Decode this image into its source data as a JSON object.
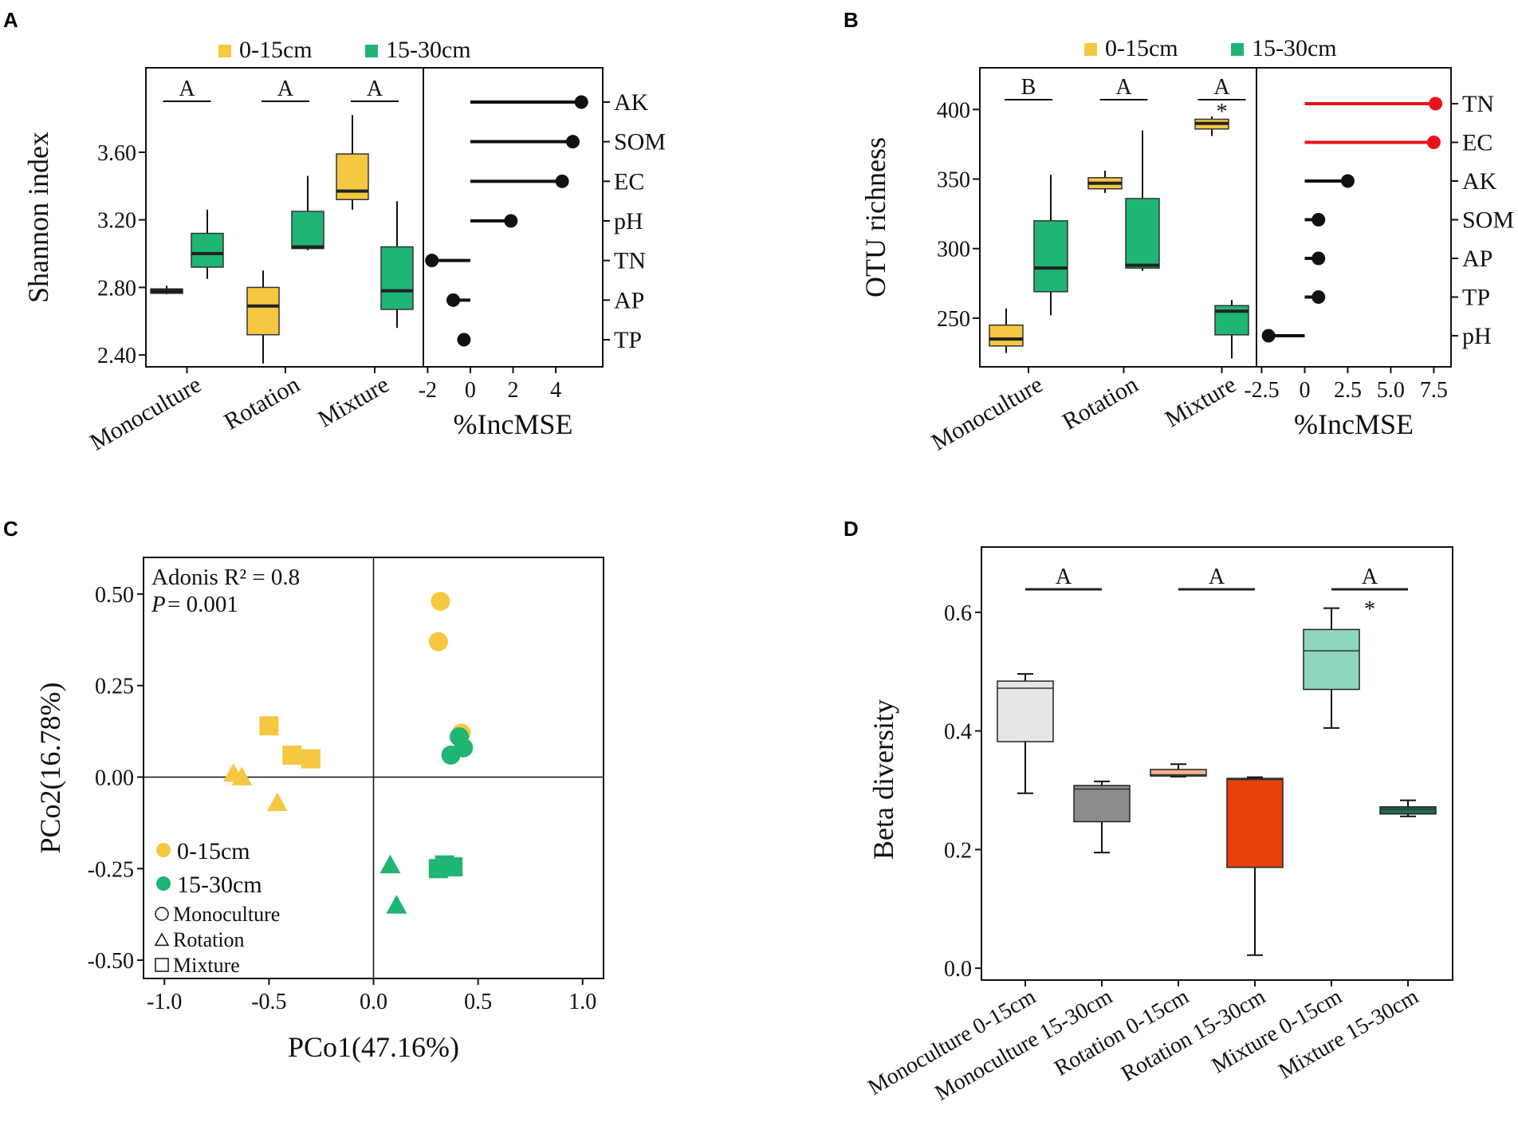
{
  "colors": {
    "yellow": "#F5C842",
    "green": "#1FB574",
    "red": "#E8131A",
    "black": "#111111",
    "d_mono_0_15": "#E6E6E6",
    "d_mono_15_30": "#8C8C8C",
    "d_rot_0_15": "#F5B08F",
    "d_rot_15_30": "#E8420A",
    "d_mix_0_15": "#8FD6BC",
    "d_mix_15_30": "#1F6B4E"
  },
  "chart_data": [
    {
      "panel": "A",
      "type": "box",
      "ylabel": "Shannon index",
      "legend": [
        "0-15cm",
        "15-30cm"
      ],
      "categories": [
        "Monoculture",
        "Rotation",
        "Mixture"
      ],
      "yticks": [
        "2.40",
        "2.80",
        "3.20",
        "3.60"
      ],
      "ylim": [
        2.33,
        4.1
      ],
      "letters": [
        "A",
        "A",
        "A"
      ],
      "star": [
        false,
        false,
        false
      ],
      "boxes": [
        {
          "group": "Monoculture",
          "depth": "0-15cm",
          "color": "black",
          "min": 2.76,
          "q1": 2.765,
          "median": 2.785,
          "q3": 2.79,
          "max": 2.81
        },
        {
          "group": "Monoculture",
          "depth": "15-30cm",
          "color": "green",
          "min": 2.85,
          "q1": 2.92,
          "median": 3.0,
          "q3": 3.12,
          "max": 3.26
        },
        {
          "group": "Rotation",
          "depth": "0-15cm",
          "color": "yellow",
          "min": 2.35,
          "q1": 2.52,
          "median": 2.69,
          "q3": 2.8,
          "max": 2.9
        },
        {
          "group": "Rotation",
          "depth": "15-30cm",
          "color": "green",
          "min": 3.02,
          "q1": 3.03,
          "median": 3.04,
          "q3": 3.25,
          "max": 3.46
        },
        {
          "group": "Mixture",
          "depth": "0-15cm",
          "color": "yellow",
          "min": 3.26,
          "q1": 3.32,
          "median": 3.37,
          "q3": 3.59,
          "max": 3.82
        },
        {
          "group": "Mixture",
          "depth": "15-30cm",
          "color": "green",
          "min": 2.56,
          "q1": 2.67,
          "median": 2.78,
          "q3": 3.04,
          "max": 3.31
        }
      ],
      "importance": {
        "xlabel": "%IncMSE",
        "xticks": [
          "-2",
          "0",
          "2",
          "4"
        ],
        "xlim": [
          -2.2,
          6.2
        ],
        "variables": [
          "AK",
          "SOM",
          "EC",
          "pH",
          "TN",
          "AP",
          "TP"
        ],
        "values": [
          5.2,
          4.8,
          4.3,
          1.9,
          -1.8,
          -0.8,
          -0.3
        ],
        "colors": [
          "black",
          "black",
          "black",
          "black",
          "black",
          "black",
          "black"
        ]
      }
    },
    {
      "panel": "B",
      "type": "box",
      "ylabel": "OTU richness",
      "legend": [
        "0-15cm",
        "15-30cm"
      ],
      "categories": [
        "Monoculture",
        "Rotation",
        "Mixture"
      ],
      "yticks": [
        "250",
        "300",
        "350",
        "400"
      ],
      "ylim": [
        215,
        430
      ],
      "letters": [
        "B",
        "A",
        "A"
      ],
      "star": [
        false,
        false,
        true
      ],
      "boxes": [
        {
          "group": "Monoculture",
          "depth": "0-15cm",
          "color": "yellow",
          "min": 225,
          "q1": 230,
          "median": 235,
          "q3": 245,
          "max": 257
        },
        {
          "group": "Monoculture",
          "depth": "15-30cm",
          "color": "green",
          "min": 252,
          "q1": 269,
          "median": 286,
          "q3": 320,
          "max": 353
        },
        {
          "group": "Rotation",
          "depth": "0-15cm",
          "color": "yellow",
          "min": 340,
          "q1": 343,
          "median": 347,
          "q3": 351,
          "max": 356
        },
        {
          "group": "Rotation",
          "depth": "15-30cm",
          "color": "green",
          "min": 284,
          "q1": 286,
          "median": 288,
          "q3": 336,
          "max": 385
        },
        {
          "group": "Mixture",
          "depth": "0-15cm",
          "color": "yellow",
          "min": 381,
          "q1": 386,
          "median": 390,
          "q3": 393,
          "max": 395
        },
        {
          "group": "Mixture",
          "depth": "15-30cm",
          "color": "green",
          "min": 221,
          "q1": 238,
          "median": 255,
          "q3": 259,
          "max": 263
        }
      ],
      "importance": {
        "xlabel": "%IncMSE",
        "xticks": [
          "-2.5",
          "0",
          "2.5",
          "5.0",
          "7.5"
        ],
        "xlim": [
          -2.8,
          8.5
        ],
        "variables": [
          "TN",
          "EC",
          "AK",
          "SOM",
          "AP",
          "TP",
          "pH"
        ],
        "values": [
          7.6,
          7.5,
          2.5,
          0.8,
          0.8,
          0.8,
          -2.1
        ],
        "colors": [
          "red",
          "red",
          "black",
          "black",
          "black",
          "black",
          "black"
        ]
      }
    },
    {
      "panel": "C",
      "type": "scatter",
      "xlabel": "PCo1(47.16%)",
      "ylabel": "PCo2(16.78%)",
      "xticks": [
        "-1.0",
        "-0.5",
        "0.0",
        "0.5",
        "1.0"
      ],
      "yticks": [
        "-0.50",
        "-0.25",
        "0.00",
        "0.25",
        "0.50"
      ],
      "xlim": [
        -1.1,
        1.1
      ],
      "ylim": [
        -0.55,
        0.6
      ],
      "annotation_r2": "Adonis R² = 0.8",
      "annotation_p_label": "P",
      "annotation_p_value": " = 0.001",
      "legend_colors": [
        {
          "label": "0-15cm",
          "color": "yellow"
        },
        {
          "label": "15-30cm",
          "color": "green"
        }
      ],
      "legend_shapes": [
        {
          "label": "Monoculture",
          "shape": "circle"
        },
        {
          "label": "Rotation",
          "shape": "triangle"
        },
        {
          "label": "Mixture",
          "shape": "square"
        }
      ],
      "points": [
        {
          "x": 0.32,
          "y": 0.48,
          "shape": "circle",
          "color": "yellow"
        },
        {
          "x": 0.31,
          "y": 0.37,
          "shape": "circle",
          "color": "yellow"
        },
        {
          "x": 0.42,
          "y": 0.12,
          "shape": "circle",
          "color": "yellow"
        },
        {
          "x": 0.41,
          "y": 0.11,
          "shape": "circle",
          "color": "green"
        },
        {
          "x": 0.43,
          "y": 0.08,
          "shape": "circle",
          "color": "green"
        },
        {
          "x": 0.37,
          "y": 0.06,
          "shape": "circle",
          "color": "green"
        },
        {
          "x": -0.5,
          "y": 0.14,
          "shape": "square",
          "color": "yellow"
        },
        {
          "x": -0.39,
          "y": 0.06,
          "shape": "square",
          "color": "yellow"
        },
        {
          "x": -0.3,
          "y": 0.05,
          "shape": "square",
          "color": "yellow"
        },
        {
          "x": -0.67,
          "y": 0.01,
          "shape": "triangle",
          "color": "yellow"
        },
        {
          "x": -0.63,
          "y": 0.0,
          "shape": "triangle",
          "color": "yellow"
        },
        {
          "x": -0.46,
          "y": -0.07,
          "shape": "triangle",
          "color": "yellow"
        },
        {
          "x": 0.31,
          "y": -0.25,
          "shape": "square",
          "color": "green"
        },
        {
          "x": 0.34,
          "y": -0.24,
          "shape": "square",
          "color": "green"
        },
        {
          "x": 0.38,
          "y": -0.245,
          "shape": "square",
          "color": "green"
        },
        {
          "x": 0.08,
          "y": -0.24,
          "shape": "triangle",
          "color": "green"
        },
        {
          "x": 0.11,
          "y": -0.35,
          "shape": "triangle",
          "color": "green"
        }
      ]
    },
    {
      "panel": "D",
      "type": "box",
      "ylabel": "Beta diversity",
      "categories": [
        "Monoculture 0-15cm",
        "Monoculture 15-30cm",
        "Rotation 0-15cm",
        "Rotation 15-30cm",
        "Mixture  0-15cm",
        "Mixture  15-30cm"
      ],
      "yticks": [
        "0.0",
        "0.2",
        "0.4",
        "0.6"
      ],
      "ylim": [
        -0.02,
        0.71
      ],
      "letters": [
        "A",
        "A",
        "A"
      ],
      "star": [
        false,
        false,
        true
      ],
      "boxes": [
        {
          "color": "d_mono_0_15",
          "min": 0.295,
          "q1": 0.382,
          "median": 0.472,
          "q3": 0.484,
          "max": 0.496
        },
        {
          "color": "d_mono_15_30",
          "min": 0.195,
          "q1": 0.247,
          "median": 0.302,
          "q3": 0.308,
          "max": 0.315
        },
        {
          "color": "d_rot_0_15",
          "min": 0.323,
          "q1": 0.324,
          "median": 0.326,
          "q3": 0.335,
          "max": 0.344
        },
        {
          "color": "d_rot_15_30",
          "min": 0.022,
          "q1": 0.17,
          "median": 0.318,
          "q3": 0.32,
          "max": 0.322
        },
        {
          "color": "d_mix_0_15",
          "min": 0.405,
          "q1": 0.47,
          "median": 0.535,
          "q3": 0.571,
          "max": 0.607
        },
        {
          "color": "d_mix_15_30",
          "min": 0.256,
          "q1": 0.26,
          "median": 0.268,
          "q3": 0.272,
          "max": 0.283
        }
      ]
    }
  ]
}
